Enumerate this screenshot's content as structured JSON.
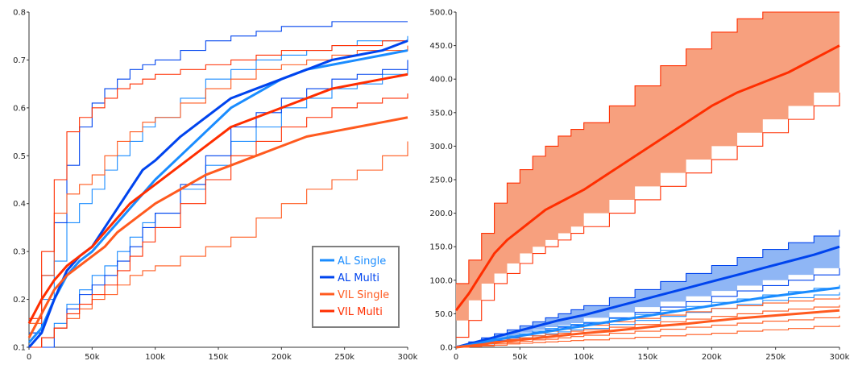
{
  "colors": {
    "al_single": "#1a8cff",
    "al_multi": "#0044ee",
    "vil_single": "#ff5a1f",
    "vil_multi": "#ff2e00",
    "vil_band_fill": "#f7a07e",
    "al_band_fill": "#8fb6f5"
  },
  "chart_data": [
    {
      "type": "line",
      "title": "",
      "xlabel": "",
      "ylabel": "",
      "xlim": [
        0,
        300000
      ],
      "ylim": [
        0.1,
        0.8
      ],
      "x_ticks": [
        "0",
        "50k",
        "100k",
        "150k",
        "200k",
        "250k",
        "300k"
      ],
      "y_ticks": [
        "0.1",
        "0.2",
        "0.3",
        "0.4",
        "0.5",
        "0.6",
        "0.7",
        "0.8"
      ],
      "legend_position": "bottom-right",
      "legend": [
        "AL Single",
        "AL Multi",
        "VIL Single",
        "VIL Multi"
      ],
      "x": [
        0,
        10000,
        20000,
        30000,
        40000,
        50000,
        60000,
        70000,
        80000,
        90000,
        100000,
        120000,
        140000,
        160000,
        180000,
        200000,
        220000,
        240000,
        260000,
        280000,
        300000
      ],
      "series": [
        {
          "name": "AL Single",
          "color_key": "al_single",
          "values": [
            0.11,
            0.14,
            0.2,
            0.25,
            0.28,
            0.3,
            0.33,
            0.36,
            0.39,
            0.42,
            0.45,
            0.5,
            0.55,
            0.6,
            0.63,
            0.66,
            0.68,
            0.69,
            0.7,
            0.71,
            0.72
          ]
        },
        {
          "name": "AL Multi",
          "color_key": "al_multi",
          "values": [
            0.1,
            0.13,
            0.2,
            0.26,
            0.29,
            0.31,
            0.35,
            0.39,
            0.43,
            0.47,
            0.49,
            0.54,
            0.58,
            0.62,
            0.64,
            0.66,
            0.68,
            0.7,
            0.71,
            0.72,
            0.74
          ]
        },
        {
          "name": "VIL Single",
          "color_key": "vil_single",
          "values": [
            0.12,
            0.17,
            0.22,
            0.25,
            0.27,
            0.29,
            0.31,
            0.34,
            0.36,
            0.38,
            0.4,
            0.43,
            0.46,
            0.48,
            0.5,
            0.52,
            0.54,
            0.55,
            0.56,
            0.57,
            0.58
          ]
        },
        {
          "name": "VIL Multi",
          "color_key": "vil_multi",
          "values": [
            0.15,
            0.2,
            0.24,
            0.27,
            0.29,
            0.31,
            0.34,
            0.37,
            0.4,
            0.42,
            0.44,
            0.48,
            0.52,
            0.56,
            0.58,
            0.6,
            0.62,
            0.64,
            0.65,
            0.66,
            0.67
          ]
        }
      ],
      "bounds": [
        {
          "series": "AL Single",
          "lower": [
            0.1,
            0.12,
            0.15,
            0.19,
            0.22,
            0.25,
            0.27,
            0.3,
            0.33,
            0.36,
            0.38,
            0.43,
            0.48,
            0.53,
            0.56,
            0.6,
            0.62,
            0.64,
            0.65,
            0.67,
            0.68
          ],
          "upper": [
            0.13,
            0.2,
            0.28,
            0.36,
            0.4,
            0.43,
            0.47,
            0.5,
            0.53,
            0.56,
            0.58,
            0.62,
            0.66,
            0.68,
            0.7,
            0.71,
            0.72,
            0.73,
            0.74,
            0.74,
            0.75
          ]
        },
        {
          "series": "AL Multi",
          "lower": [
            0.1,
            0.1,
            0.14,
            0.18,
            0.21,
            0.23,
            0.25,
            0.28,
            0.31,
            0.35,
            0.38,
            0.44,
            0.5,
            0.56,
            0.59,
            0.62,
            0.64,
            0.66,
            0.67,
            0.68,
            0.7
          ],
          "upper": [
            0.13,
            0.25,
            0.36,
            0.48,
            0.56,
            0.61,
            0.64,
            0.66,
            0.68,
            0.69,
            0.7,
            0.72,
            0.74,
            0.75,
            0.76,
            0.77,
            0.77,
            0.78,
            0.78,
            0.78,
            0.78
          ]
        },
        {
          "series": "VIL Single",
          "lower": [
            0.1,
            0.12,
            0.14,
            0.16,
            0.18,
            0.2,
            0.21,
            0.23,
            0.25,
            0.26,
            0.27,
            0.29,
            0.31,
            0.33,
            0.37,
            0.4,
            0.43,
            0.45,
            0.47,
            0.5,
            0.53
          ],
          "upper": [
            0.15,
            0.25,
            0.38,
            0.42,
            0.44,
            0.46,
            0.5,
            0.53,
            0.55,
            0.57,
            0.58,
            0.61,
            0.64,
            0.66,
            0.68,
            0.69,
            0.7,
            0.71,
            0.72,
            0.72,
            0.73
          ]
        },
        {
          "series": "VIL Multi",
          "lower": [
            0.1,
            0.12,
            0.14,
            0.17,
            0.19,
            0.21,
            0.23,
            0.26,
            0.29,
            0.32,
            0.35,
            0.4,
            0.45,
            0.5,
            0.53,
            0.56,
            0.58,
            0.6,
            0.61,
            0.62,
            0.63
          ],
          "upper": [
            0.16,
            0.3,
            0.45,
            0.55,
            0.58,
            0.6,
            0.62,
            0.64,
            0.65,
            0.66,
            0.67,
            0.68,
            0.69,
            0.7,
            0.71,
            0.72,
            0.72,
            0.73,
            0.73,
            0.74,
            0.74
          ]
        }
      ]
    },
    {
      "type": "line",
      "title": "",
      "xlabel": "",
      "ylabel": "",
      "xlim": [
        0,
        300000
      ],
      "ylim": [
        0,
        500
      ],
      "x_ticks": [
        "0",
        "50k",
        "100k",
        "150k",
        "200k",
        "250k",
        "300k"
      ],
      "y_ticks": [
        "0.0",
        "50.0",
        "100.0",
        "150.0",
        "200.0",
        "250.0",
        "300.0",
        "350.0",
        "400.0",
        "450.0",
        "500.0"
      ],
      "x": [
        0,
        10000,
        20000,
        30000,
        40000,
        50000,
        60000,
        70000,
        80000,
        90000,
        100000,
        120000,
        140000,
        160000,
        180000,
        200000,
        220000,
        240000,
        260000,
        280000,
        300000
      ],
      "series": [
        {
          "name": "VIL Multi",
          "color_key": "vil_multi",
          "values": [
            55,
            80,
            110,
            140,
            160,
            175,
            190,
            205,
            215,
            225,
            235,
            260,
            285,
            310,
            335,
            360,
            380,
            395,
            410,
            430,
            450
          ]
        },
        {
          "name": "AL Multi",
          "color_key": "al_multi",
          "values": [
            0,
            5,
            10,
            15,
            20,
            25,
            30,
            35,
            40,
            44,
            48,
            58,
            68,
            78,
            88,
            98,
            108,
            118,
            128,
            138,
            150
          ]
        },
        {
          "name": "AL Single",
          "color_key": "al_single",
          "values": [
            0,
            3,
            7,
            11,
            14,
            17,
            20,
            23,
            26,
            29,
            32,
            38,
            44,
            50,
            56,
            62,
            68,
            74,
            79,
            84,
            89
          ]
        },
        {
          "name": "VIL Single",
          "color_key": "vil_single",
          "values": [
            0,
            2,
            4,
            7,
            9,
            11,
            13,
            15,
            17,
            19,
            21,
            24,
            28,
            32,
            35,
            39,
            43,
            46,
            49,
            52,
            55
          ]
        }
      ],
      "bounds": [
        {
          "series": "VIL Multi",
          "lower": [
            15,
            40,
            70,
            95,
            110,
            125,
            140,
            150,
            160,
            170,
            180,
            200,
            220,
            240,
            260,
            280,
            300,
            320,
            340,
            360,
            380
          ],
          "upper": [
            95,
            130,
            170,
            215,
            245,
            265,
            285,
            300,
            315,
            325,
            335,
            360,
            390,
            420,
            445,
            470,
            490,
            500,
            500,
            500,
            500
          ],
          "shaded": true,
          "fill_key": "vil_band_fill"
        },
        {
          "series": "AL Multi",
          "lower": [
            0,
            3,
            6,
            10,
            14,
            18,
            22,
            26,
            30,
            33,
            36,
            44,
            52,
            60,
            68,
            76,
            84,
            92,
            100,
            108,
            118
          ],
          "upper": [
            0,
            8,
            14,
            20,
            26,
            32,
            38,
            44,
            50,
            56,
            62,
            74,
            86,
            98,
            110,
            122,
            134,
            146,
            156,
            166,
            175
          ],
          "shaded": true,
          "fill_key": "al_band_fill"
        },
        {
          "series": "AL Single",
          "lower": [
            0,
            2,
            5,
            8,
            11,
            14,
            17,
            20,
            23,
            26,
            28,
            34,
            40,
            46,
            52,
            58,
            64,
            70,
            74,
            78,
            82
          ],
          "upper": [
            0,
            5,
            9,
            13,
            17,
            20,
            24,
            28,
            31,
            34,
            37,
            43,
            49,
            55,
            61,
            67,
            72,
            78,
            83,
            88,
            93
          ]
        },
        {
          "series": "VIL Single",
          "lower": [
            0,
            1,
            2,
            3,
            5,
            6,
            7,
            8,
            9,
            10,
            11,
            13,
            15,
            17,
            19,
            21,
            24,
            26,
            28,
            31,
            33
          ],
          "upper": [
            0,
            5,
            8,
            12,
            15,
            18,
            21,
            24,
            27,
            30,
            33,
            38,
            43,
            48,
            53,
            58,
            62,
            66,
            69,
            72,
            75
          ]
        },
        {
          "series": "VIL Single",
          "lower": [
            0,
            1,
            3,
            5,
            7,
            9,
            11,
            12,
            14,
            16,
            18,
            21,
            24,
            27,
            30,
            33,
            36,
            39,
            41,
            44,
            47
          ],
          "upper": [
            0,
            3,
            6,
            9,
            12,
            14,
            17,
            19,
            21,
            24,
            26,
            30,
            34,
            38,
            42,
            46,
            50,
            54,
            57,
            60,
            63
          ]
        }
      ]
    }
  ]
}
